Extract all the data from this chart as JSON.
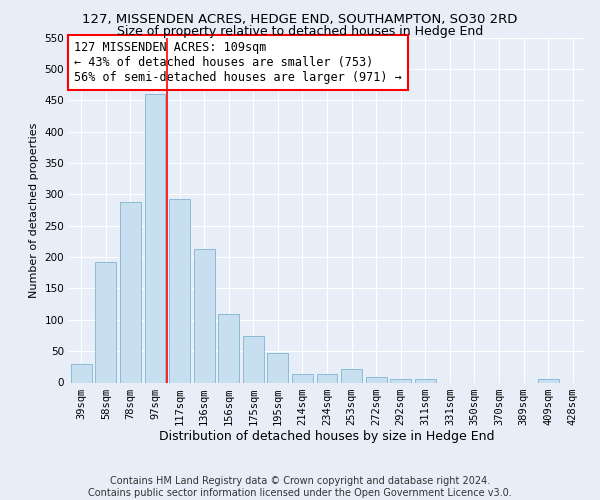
{
  "title": "127, MISSENDEN ACRES, HEDGE END, SOUTHAMPTON, SO30 2RD",
  "subtitle": "Size of property relative to detached houses in Hedge End",
  "xlabel": "Distribution of detached houses by size in Hedge End",
  "ylabel": "Number of detached properties",
  "bar_labels": [
    "39sqm",
    "58sqm",
    "78sqm",
    "97sqm",
    "117sqm",
    "136sqm",
    "156sqm",
    "175sqm",
    "195sqm",
    "214sqm",
    "234sqm",
    "253sqm",
    "272sqm",
    "292sqm",
    "311sqm",
    "331sqm",
    "350sqm",
    "370sqm",
    "389sqm",
    "409sqm",
    "428sqm"
  ],
  "bar_values": [
    30,
    192,
    288,
    460,
    293,
    213,
    110,
    74,
    47,
    13,
    13,
    21,
    8,
    6,
    5,
    0,
    0,
    0,
    0,
    5,
    0
  ],
  "bar_color": "#c8dff0",
  "bar_edge_color": "#7fb3d3",
  "vline_x_index": 3.5,
  "vline_color": "red",
  "annotation_title": "127 MISSENDEN ACRES: 109sqm",
  "annotation_line2": "← 43% of detached houses are smaller (753)",
  "annotation_line3": "56% of semi-detached houses are larger (971) →",
  "annotation_box_color": "white",
  "annotation_box_edge": "red",
  "ylim": [
    0,
    550
  ],
  "yticks": [
    0,
    50,
    100,
    150,
    200,
    250,
    300,
    350,
    400,
    450,
    500,
    550
  ],
  "footer1": "Contains HM Land Registry data © Crown copyright and database right 2024.",
  "footer2": "Contains public sector information licensed under the Open Government Licence v3.0.",
  "background_color": "#e8eef8",
  "plot_bg_color": "#e8eef8",
  "grid_color": "#ffffff",
  "title_fontsize": 9.5,
  "subtitle_fontsize": 9,
  "xlabel_fontsize": 9,
  "ylabel_fontsize": 8,
  "tick_fontsize": 7.5,
  "annotation_fontsize": 8.5,
  "footer_fontsize": 7
}
